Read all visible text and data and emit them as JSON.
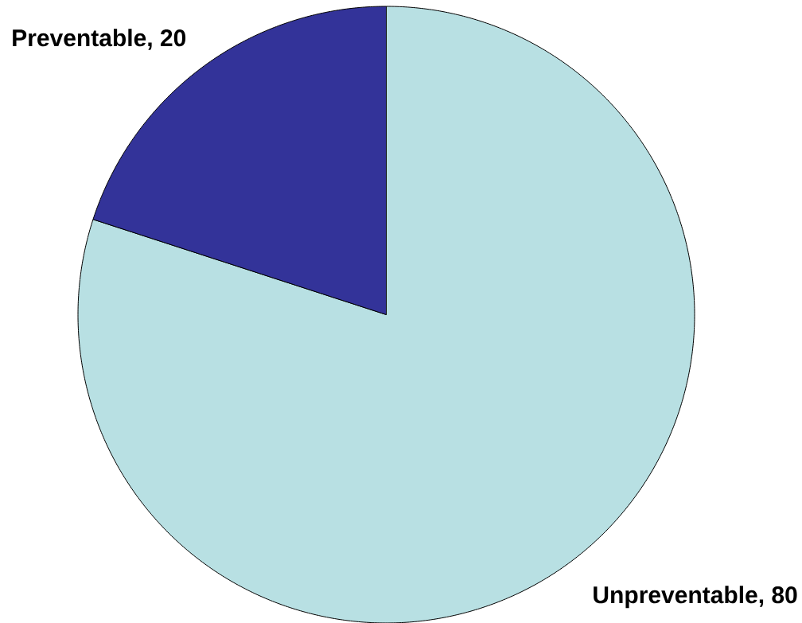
{
  "chart_data": {
    "type": "pie",
    "categories": [
      "Unpreventable",
      "Preventable"
    ],
    "values": [
      80,
      20
    ],
    "colors": [
      "#b8e0e3",
      "#333399"
    ],
    "value_labels": [
      ", 80",
      ", 20"
    ]
  }
}
